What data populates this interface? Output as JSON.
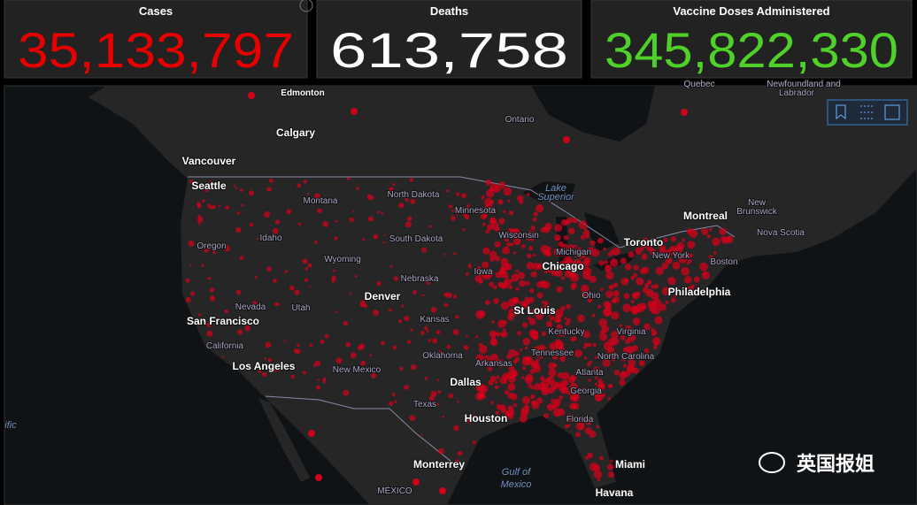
{
  "stats": [
    {
      "label": "Cases",
      "value": "35,133,797",
      "color": "#e60000"
    },
    {
      "label": "Deaths",
      "value": "613,758",
      "color": "#ffffff"
    },
    {
      "label": "Vaccine Doses Administered",
      "value": "345,822,330",
      "color": "#4fd12a"
    }
  ],
  "map": {
    "labels": [
      "Edmonton",
      "Calgary",
      "Vancouver",
      "Seattle",
      "Ontario",
      "Quebec",
      "Newfoundland and",
      "Labrador",
      "Montana",
      "North Dakota",
      "Minnesota",
      "Lake",
      "Superior",
      "Montreal",
      "New",
      "Brunswick",
      "Nova Scotia",
      "Toronto",
      "New York",
      "Boston",
      "Philadelphia",
      "Oregon",
      "Idaho",
      "Wyoming",
      "South Dakota",
      "Wisconsin",
      "Michigan",
      "Chicago",
      "Iowa",
      "Nebraska",
      "Ohio",
      "Nevada",
      "Utah",
      "Denver",
      "Kansas",
      "St Louis",
      "Kentucky",
      "Virginia",
      "San Francisco",
      "California",
      "Los Angeles",
      "New Mexico",
      "Oklahoma",
      "Arkansas",
      "Tennessee",
      "North Carolina",
      "Atlanta",
      "Georgia",
      "Dallas",
      "Texas",
      "Houston",
      "Florida",
      "Miami",
      "Monterrey",
      "Gulf of",
      "Mexico",
      "MÉXICO",
      "Havana",
      "ific"
    ]
  },
  "watermark": "英国报姐"
}
